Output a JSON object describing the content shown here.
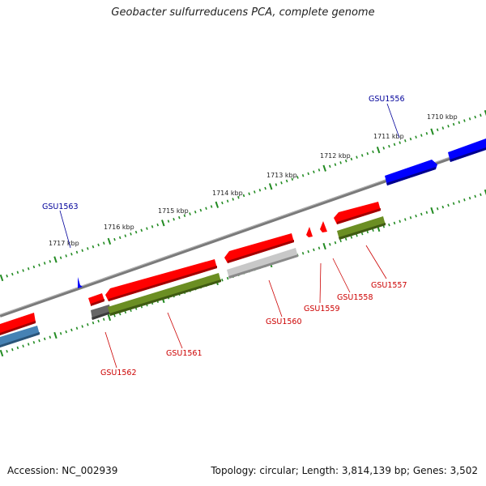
{
  "title": "Geobacter sulfurreducens PCA, complete genome",
  "footer": {
    "accession": "Accession: NC_002939",
    "summary": "Topology: circular; Length: 3,814,139 bp; Genes: 3,502"
  },
  "ruler_labels": [
    "1717 kbp",
    "1716 kbp",
    "1715 kbp",
    "1714 kbp",
    "1713 kbp",
    "1712 kbp",
    "1711 kbp",
    "1710 kbp"
  ],
  "gene_labels": {
    "gsu1556": "GSU1556",
    "gsu1557": "GSU1557",
    "gsu1558": "GSU1558",
    "gsu1559": "GSU1559",
    "gsu1560": "GSU1560",
    "gsu1561": "GSU1561",
    "gsu1562": "GSU1562",
    "gsu1563": "GSU1563"
  },
  "colors": {
    "cds_red": "#ff0000",
    "cds_blue": "#0000ff",
    "cds_green": "#6b8e23",
    "cds_steel": "#4682b4",
    "cds_gray": "#c0c0c0",
    "cds_dark": "#666666",
    "backbone": "#808080",
    "ruler": "#228b22",
    "label_red": "#cc0000",
    "label_blue": "#00009a"
  }
}
